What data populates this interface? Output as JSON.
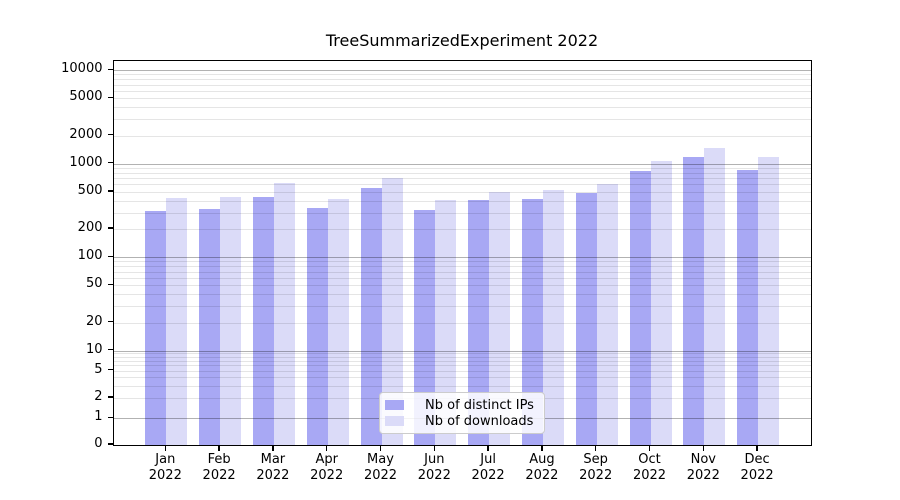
{
  "chart_data": {
    "type": "bar",
    "title": "TreeSummarizedExperiment 2022",
    "categories": [
      "Jan",
      "Feb",
      "Mar",
      "Apr",
      "May",
      "Jun",
      "Jul",
      "Aug",
      "Sep",
      "Oct",
      "Nov",
      "Dec"
    ],
    "x_year_line": "2022",
    "series": [
      {
        "name": "Nb of distinct IPs",
        "color": "#a8a8f4",
        "values": [
          310,
          325,
          445,
          335,
          555,
          320,
          410,
          420,
          490,
          835,
          1175,
          865
        ]
      },
      {
        "name": "Nb of downloads",
        "color": "#dbdbf8",
        "values": [
          430,
          445,
          625,
          420,
          700,
          410,
          500,
          525,
          600,
          1080,
          1490,
          1170
        ]
      }
    ],
    "yscale": "symlog",
    "y_ticks": [
      0,
      1,
      2,
      5,
      10,
      20,
      50,
      100,
      200,
      500,
      1000,
      2000,
      5000,
      10000
    ],
    "ylim": [
      0,
      10000
    ],
    "grid": true,
    "legend_position": "lower center"
  },
  "colors": {
    "background": "#ffffff",
    "spine": "#000000",
    "decade_grid": "rgba(0,0,0,0.30)",
    "minor_grid": "rgba(0,0,0,0.10)"
  }
}
